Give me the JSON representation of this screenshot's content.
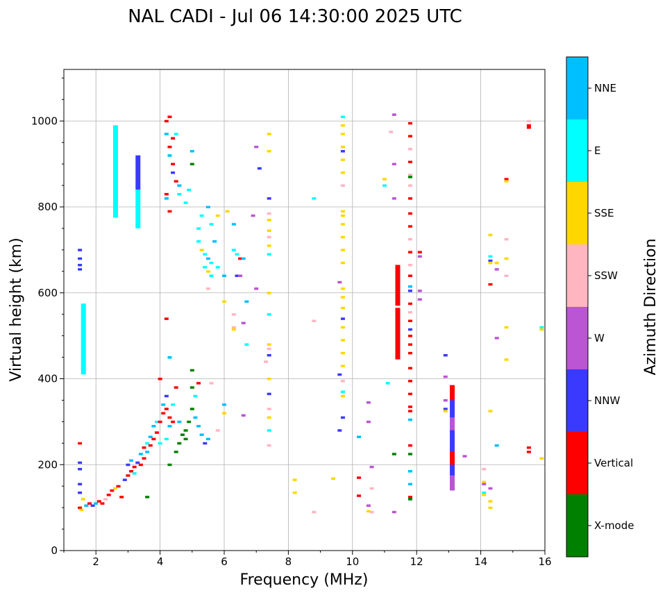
{
  "chart_data": {
    "type": "scatter",
    "title": "NAL CADI - Jul 06 14:30:00 2025 UTC",
    "xlabel": "Frequency (MHz)",
    "ylabel": "Virtual height (km)",
    "xlim": [
      1,
      16
    ],
    "ylim": [
      0,
      1120
    ],
    "xticks": [
      2,
      4,
      6,
      8,
      10,
      12,
      14,
      16
    ],
    "yticks": [
      0,
      200,
      400,
      600,
      800,
      1000
    ],
    "grid": true,
    "colorbar": {
      "label": "Azimuth Direction",
      "categories": [
        "X-mode",
        "Vertical",
        "NNW",
        "W",
        "SSW",
        "SSE",
        "E",
        "NNE"
      ],
      "colors": [
        "#008000",
        "#ff0000",
        "#3a3aff",
        "#ba55d3",
        "#ffb6c1",
        "#ffd700",
        "#00ffff",
        "#00bfff"
      ]
    },
    "segments": [
      [
        1.6,
        410,
        575,
        6
      ],
      [
        2.6,
        775,
        990,
        6
      ],
      [
        3.3,
        840,
        920,
        2
      ],
      [
        3.3,
        750,
        840,
        6
      ],
      [
        11.4,
        445,
        565,
        1
      ],
      [
        11.4,
        570,
        665,
        1
      ],
      [
        13.1,
        140,
        385,
        2
      ],
      [
        13.1,
        140,
        175,
        3
      ],
      [
        13.1,
        200,
        230,
        1
      ],
      [
        13.1,
        280,
        310,
        3
      ],
      [
        13.1,
        350,
        385,
        1
      ]
    ],
    "points": [
      [
        1.5,
        100,
        1
      ],
      [
        1.5,
        250,
        1
      ],
      [
        1.5,
        205,
        2
      ],
      [
        1.5,
        190,
        2
      ],
      [
        1.5,
        135,
        2
      ],
      [
        1.5,
        155,
        2
      ],
      [
        1.55,
        95,
        5
      ],
      [
        1.5,
        700,
        2
      ],
      [
        1.5,
        680,
        2
      ],
      [
        1.5,
        665,
        2
      ],
      [
        1.5,
        655,
        2
      ],
      [
        1.6,
        120,
        5
      ],
      [
        1.7,
        105,
        7
      ],
      [
        1.8,
        110,
        1
      ],
      [
        1.9,
        105,
        2
      ],
      [
        2.0,
        110,
        7
      ],
      [
        2.1,
        115,
        1
      ],
      [
        2.2,
        110,
        1
      ],
      [
        2.3,
        120,
        4
      ],
      [
        2.4,
        130,
        1
      ],
      [
        2.5,
        140,
        1
      ],
      [
        2.6,
        145,
        5
      ],
      [
        2.7,
        150,
        1
      ],
      [
        2.8,
        125,
        1
      ],
      [
        2.9,
        165,
        2
      ],
      [
        3.0,
        175,
        1
      ],
      [
        3.0,
        200,
        2
      ],
      [
        3.1,
        185,
        1
      ],
      [
        3.1,
        210,
        7
      ],
      [
        3.2,
        195,
        1
      ],
      [
        3.2,
        180,
        6
      ],
      [
        3.3,
        205,
        2
      ],
      [
        3.4,
        200,
        1
      ],
      [
        3.4,
        225,
        7
      ],
      [
        3.5,
        215,
        1
      ],
      [
        3.5,
        240,
        1
      ],
      [
        3.6,
        230,
        7
      ],
      [
        3.6,
        250,
        6
      ],
      [
        3.7,
        245,
        1
      ],
      [
        3.7,
        265,
        7
      ],
      [
        3.8,
        260,
        1
      ],
      [
        3.8,
        290,
        7
      ],
      [
        3.9,
        275,
        1
      ],
      [
        3.9,
        300,
        6
      ],
      [
        4.0,
        300,
        1
      ],
      [
        4.0,
        250,
        6
      ],
      [
        4.0,
        400,
        1
      ],
      [
        4.1,
        320,
        1
      ],
      [
        4.1,
        340,
        7
      ],
      [
        4.2,
        330,
        1
      ],
      [
        4.2,
        260,
        6
      ],
      [
        4.2,
        360,
        2
      ],
      [
        4.3,
        310,
        1
      ],
      [
        4.3,
        290,
        7
      ],
      [
        4.4,
        300,
        1
      ],
      [
        4.4,
        340,
        6
      ],
      [
        4.5,
        380,
        1
      ],
      [
        4.5,
        230,
        0
      ],
      [
        4.6,
        250,
        0
      ],
      [
        4.6,
        300,
        7
      ],
      [
        4.7,
        270,
        0
      ],
      [
        4.8,
        280,
        0
      ],
      [
        4.8,
        260,
        0
      ],
      [
        4.9,
        300,
        0
      ],
      [
        5.0,
        330,
        0
      ],
      [
        5.0,
        420,
        0
      ],
      [
        5.0,
        380,
        0
      ],
      [
        5.1,
        310,
        7
      ],
      [
        5.1,
        360,
        6
      ],
      [
        5.2,
        290,
        7
      ],
      [
        5.2,
        390,
        1
      ],
      [
        5.3,
        270,
        7
      ],
      [
        5.4,
        250,
        2
      ],
      [
        5.5,
        260,
        7
      ],
      [
        5.6,
        390,
        4
      ],
      [
        5.8,
        280,
        4
      ],
      [
        6.0,
        320,
        5
      ],
      [
        6.0,
        340,
        7
      ],
      [
        6.6,
        315,
        3
      ],
      [
        3.6,
        125,
        0
      ],
      [
        4.3,
        200,
        0
      ],
      [
        4.2,
        540,
        1
      ],
      [
        4.3,
        450,
        7
      ],
      [
        4.2,
        1000,
        1
      ],
      [
        4.3,
        1010,
        1
      ],
      [
        4.2,
        970,
        7
      ],
      [
        4.3,
        940,
        1
      ],
      [
        4.4,
        900,
        1
      ],
      [
        4.3,
        920,
        7
      ],
      [
        4.4,
        960,
        1
      ],
      [
        4.5,
        970,
        6
      ],
      [
        4.4,
        880,
        2
      ],
      [
        4.5,
        860,
        1
      ],
      [
        4.6,
        850,
        7
      ],
      [
        4.6,
        830,
        6
      ],
      [
        4.2,
        830,
        1
      ],
      [
        4.2,
        820,
        7
      ],
      [
        4.3,
        790,
        1
      ],
      [
        4.8,
        810,
        6
      ],
      [
        4.9,
        840,
        6
      ],
      [
        5.0,
        900,
        0
      ],
      [
        5.0,
        930,
        7
      ],
      [
        5.2,
        750,
        6
      ],
      [
        5.2,
        720,
        6
      ],
      [
        5.3,
        700,
        5
      ],
      [
        5.4,
        690,
        6
      ],
      [
        5.4,
        660,
        6
      ],
      [
        5.5,
        680,
        7
      ],
      [
        5.5,
        650,
        5
      ],
      [
        5.6,
        670,
        6
      ],
      [
        5.6,
        640,
        6
      ],
      [
        5.5,
        610,
        4
      ],
      [
        5.5,
        800,
        7
      ],
      [
        5.3,
        780,
        6
      ],
      [
        5.6,
        760,
        6
      ],
      [
        5.7,
        720,
        7
      ],
      [
        5.8,
        780,
        5
      ],
      [
        5.8,
        660,
        6
      ],
      [
        6.0,
        640,
        7
      ],
      [
        6.0,
        580,
        5
      ],
      [
        6.1,
        790,
        5
      ],
      [
        6.3,
        760,
        7
      ],
      [
        6.3,
        700,
        6
      ],
      [
        6.4,
        690,
        6
      ],
      [
        6.5,
        680,
        1
      ],
      [
        6.6,
        680,
        7
      ],
      [
        6.4,
        640,
        2
      ],
      [
        6.5,
        640,
        3
      ],
      [
        6.3,
        550,
        4
      ],
      [
        6.3,
        520,
        4
      ],
      [
        6.3,
        515,
        5
      ],
      [
        6.6,
        530,
        3
      ],
      [
        6.7,
        480,
        6
      ],
      [
        6.7,
        580,
        7
      ],
      [
        6.9,
        780,
        3
      ],
      [
        7.0,
        940,
        3
      ],
      [
        7.0,
        610,
        3
      ],
      [
        7.1,
        890,
        2
      ],
      [
        7.3,
        440,
        4
      ],
      [
        7.4,
        970,
        5
      ],
      [
        7.4,
        930,
        5
      ],
      [
        7.4,
        820,
        2
      ],
      [
        7.4,
        785,
        4
      ],
      [
        7.4,
        770,
        5
      ],
      [
        7.4,
        745,
        5
      ],
      [
        7.4,
        730,
        4
      ],
      [
        7.4,
        710,
        5
      ],
      [
        7.4,
        690,
        6
      ],
      [
        7.4,
        600,
        5
      ],
      [
        7.4,
        550,
        6
      ],
      [
        7.4,
        480,
        5
      ],
      [
        7.4,
        470,
        4
      ],
      [
        7.4,
        455,
        2
      ],
      [
        7.4,
        400,
        5
      ],
      [
        7.4,
        365,
        2
      ],
      [
        7.4,
        330,
        4
      ],
      [
        7.4,
        310,
        5
      ],
      [
        7.4,
        280,
        6
      ],
      [
        7.4,
        245,
        4
      ],
      [
        8.2,
        165,
        5
      ],
      [
        8.2,
        135,
        5
      ],
      [
        8.8,
        820,
        6
      ],
      [
        8.8,
        535,
        4
      ],
      [
        8.8,
        90,
        4
      ],
      [
        9.4,
        168,
        5
      ],
      [
        9.6,
        625,
        3
      ],
      [
        9.6,
        410,
        2
      ],
      [
        9.6,
        280,
        2
      ],
      [
        9.7,
        1010,
        6
      ],
      [
        9.7,
        990,
        5
      ],
      [
        9.7,
        970,
        5
      ],
      [
        9.7,
        940,
        5
      ],
      [
        9.7,
        930,
        2
      ],
      [
        9.7,
        910,
        5
      ],
      [
        9.7,
        880,
        5
      ],
      [
        9.7,
        850,
        4
      ],
      [
        9.7,
        790,
        5
      ],
      [
        9.7,
        780,
        5
      ],
      [
        9.7,
        760,
        5
      ],
      [
        9.7,
        730,
        5
      ],
      [
        9.7,
        700,
        5
      ],
      [
        9.7,
        670,
        5
      ],
      [
        9.7,
        610,
        5
      ],
      [
        9.7,
        590,
        5
      ],
      [
        9.7,
        565,
        5
      ],
      [
        9.7,
        540,
        2
      ],
      [
        9.7,
        520,
        5
      ],
      [
        9.7,
        490,
        5
      ],
      [
        9.7,
        460,
        5
      ],
      [
        9.7,
        430,
        5
      ],
      [
        9.7,
        395,
        4
      ],
      [
        9.7,
        370,
        6
      ],
      [
        9.7,
        360,
        5
      ],
      [
        9.7,
        310,
        2
      ],
      [
        10.2,
        265,
        7
      ],
      [
        10.2,
        170,
        1
      ],
      [
        10.2,
        128,
        1
      ],
      [
        10.5,
        345,
        3
      ],
      [
        10.5,
        300,
        3
      ],
      [
        10.5,
        105,
        3
      ],
      [
        10.5,
        92,
        5
      ],
      [
        10.6,
        195,
        3
      ],
      [
        10.6,
        145,
        4
      ],
      [
        10.6,
        90,
        4
      ],
      [
        11.0,
        865,
        5
      ],
      [
        11.0,
        850,
        6
      ],
      [
        11.1,
        390,
        6
      ],
      [
        11.2,
        975,
        4
      ],
      [
        11.3,
        1015,
        3
      ],
      [
        11.3,
        900,
        3
      ],
      [
        11.3,
        820,
        3
      ],
      [
        11.3,
        225,
        0
      ],
      [
        11.3,
        90,
        3
      ],
      [
        11.8,
        995,
        1
      ],
      [
        11.8,
        965,
        1
      ],
      [
        11.8,
        935,
        4
      ],
      [
        11.8,
        905,
        1
      ],
      [
        11.8,
        875,
        4
      ],
      [
        11.8,
        870,
        0
      ],
      [
        11.8,
        850,
        4
      ],
      [
        11.8,
        820,
        1
      ],
      [
        11.8,
        785,
        1
      ],
      [
        11.8,
        755,
        1
      ],
      [
        11.8,
        725,
        4
      ],
      [
        11.8,
        695,
        1
      ],
      [
        11.8,
        665,
        4
      ],
      [
        11.8,
        640,
        1
      ],
      [
        11.8,
        615,
        7
      ],
      [
        11.8,
        605,
        2
      ],
      [
        11.8,
        575,
        1
      ],
      [
        11.8,
        555,
        4
      ],
      [
        11.8,
        535,
        1
      ],
      [
        11.8,
        515,
        2
      ],
      [
        11.8,
        500,
        1
      ],
      [
        11.8,
        480,
        1
      ],
      [
        11.8,
        460,
        1
      ],
      [
        11.8,
        425,
        1
      ],
      [
        11.8,
        395,
        1
      ],
      [
        11.8,
        365,
        1
      ],
      [
        11.8,
        335,
        1
      ],
      [
        11.8,
        325,
        1
      ],
      [
        11.8,
        305,
        7
      ],
      [
        11.8,
        245,
        1
      ],
      [
        11.8,
        225,
        0
      ],
      [
        11.8,
        185,
        7
      ],
      [
        11.8,
        155,
        7
      ],
      [
        11.8,
        125,
        1
      ],
      [
        11.8,
        120,
        0
      ],
      [
        12.1,
        695,
        1
      ],
      [
        12.1,
        685,
        3
      ],
      [
        12.1,
        605,
        3
      ],
      [
        12.1,
        585,
        3
      ],
      [
        12.9,
        455,
        2
      ],
      [
        12.9,
        405,
        3
      ],
      [
        12.9,
        350,
        3
      ],
      [
        12.9,
        330,
        2
      ],
      [
        12.9,
        325,
        5
      ],
      [
        13.5,
        220,
        3
      ],
      [
        14.1,
        190,
        4
      ],
      [
        14.1,
        160,
        5
      ],
      [
        14.1,
        155,
        3
      ],
      [
        14.1,
        135,
        6
      ],
      [
        14.1,
        130,
        5
      ],
      [
        14.3,
        735,
        5
      ],
      [
        14.3,
        685,
        6
      ],
      [
        14.3,
        675,
        2
      ],
      [
        14.3,
        670,
        5
      ],
      [
        14.3,
        620,
        1
      ],
      [
        14.3,
        325,
        5
      ],
      [
        14.3,
        145,
        3
      ],
      [
        14.3,
        115,
        5
      ],
      [
        14.3,
        100,
        5
      ],
      [
        14.5,
        655,
        3
      ],
      [
        14.5,
        670,
        5
      ],
      [
        14.5,
        495,
        3
      ],
      [
        14.5,
        245,
        7
      ],
      [
        14.8,
        725,
        4
      ],
      [
        14.8,
        680,
        5
      ],
      [
        14.8,
        640,
        4
      ],
      [
        14.8,
        520,
        5
      ],
      [
        14.8,
        445,
        5
      ],
      [
        14.8,
        865,
        1
      ],
      [
        14.8,
        860,
        5
      ],
      [
        15.5,
        1000,
        4
      ],
      [
        15.5,
        990,
        1
      ],
      [
        15.5,
        985,
        1
      ],
      [
        15.5,
        240,
        1
      ],
      [
        15.5,
        230,
        1
      ],
      [
        15.9,
        520,
        6
      ],
      [
        15.9,
        515,
        5
      ],
      [
        15.9,
        215,
        5
      ]
    ]
  }
}
